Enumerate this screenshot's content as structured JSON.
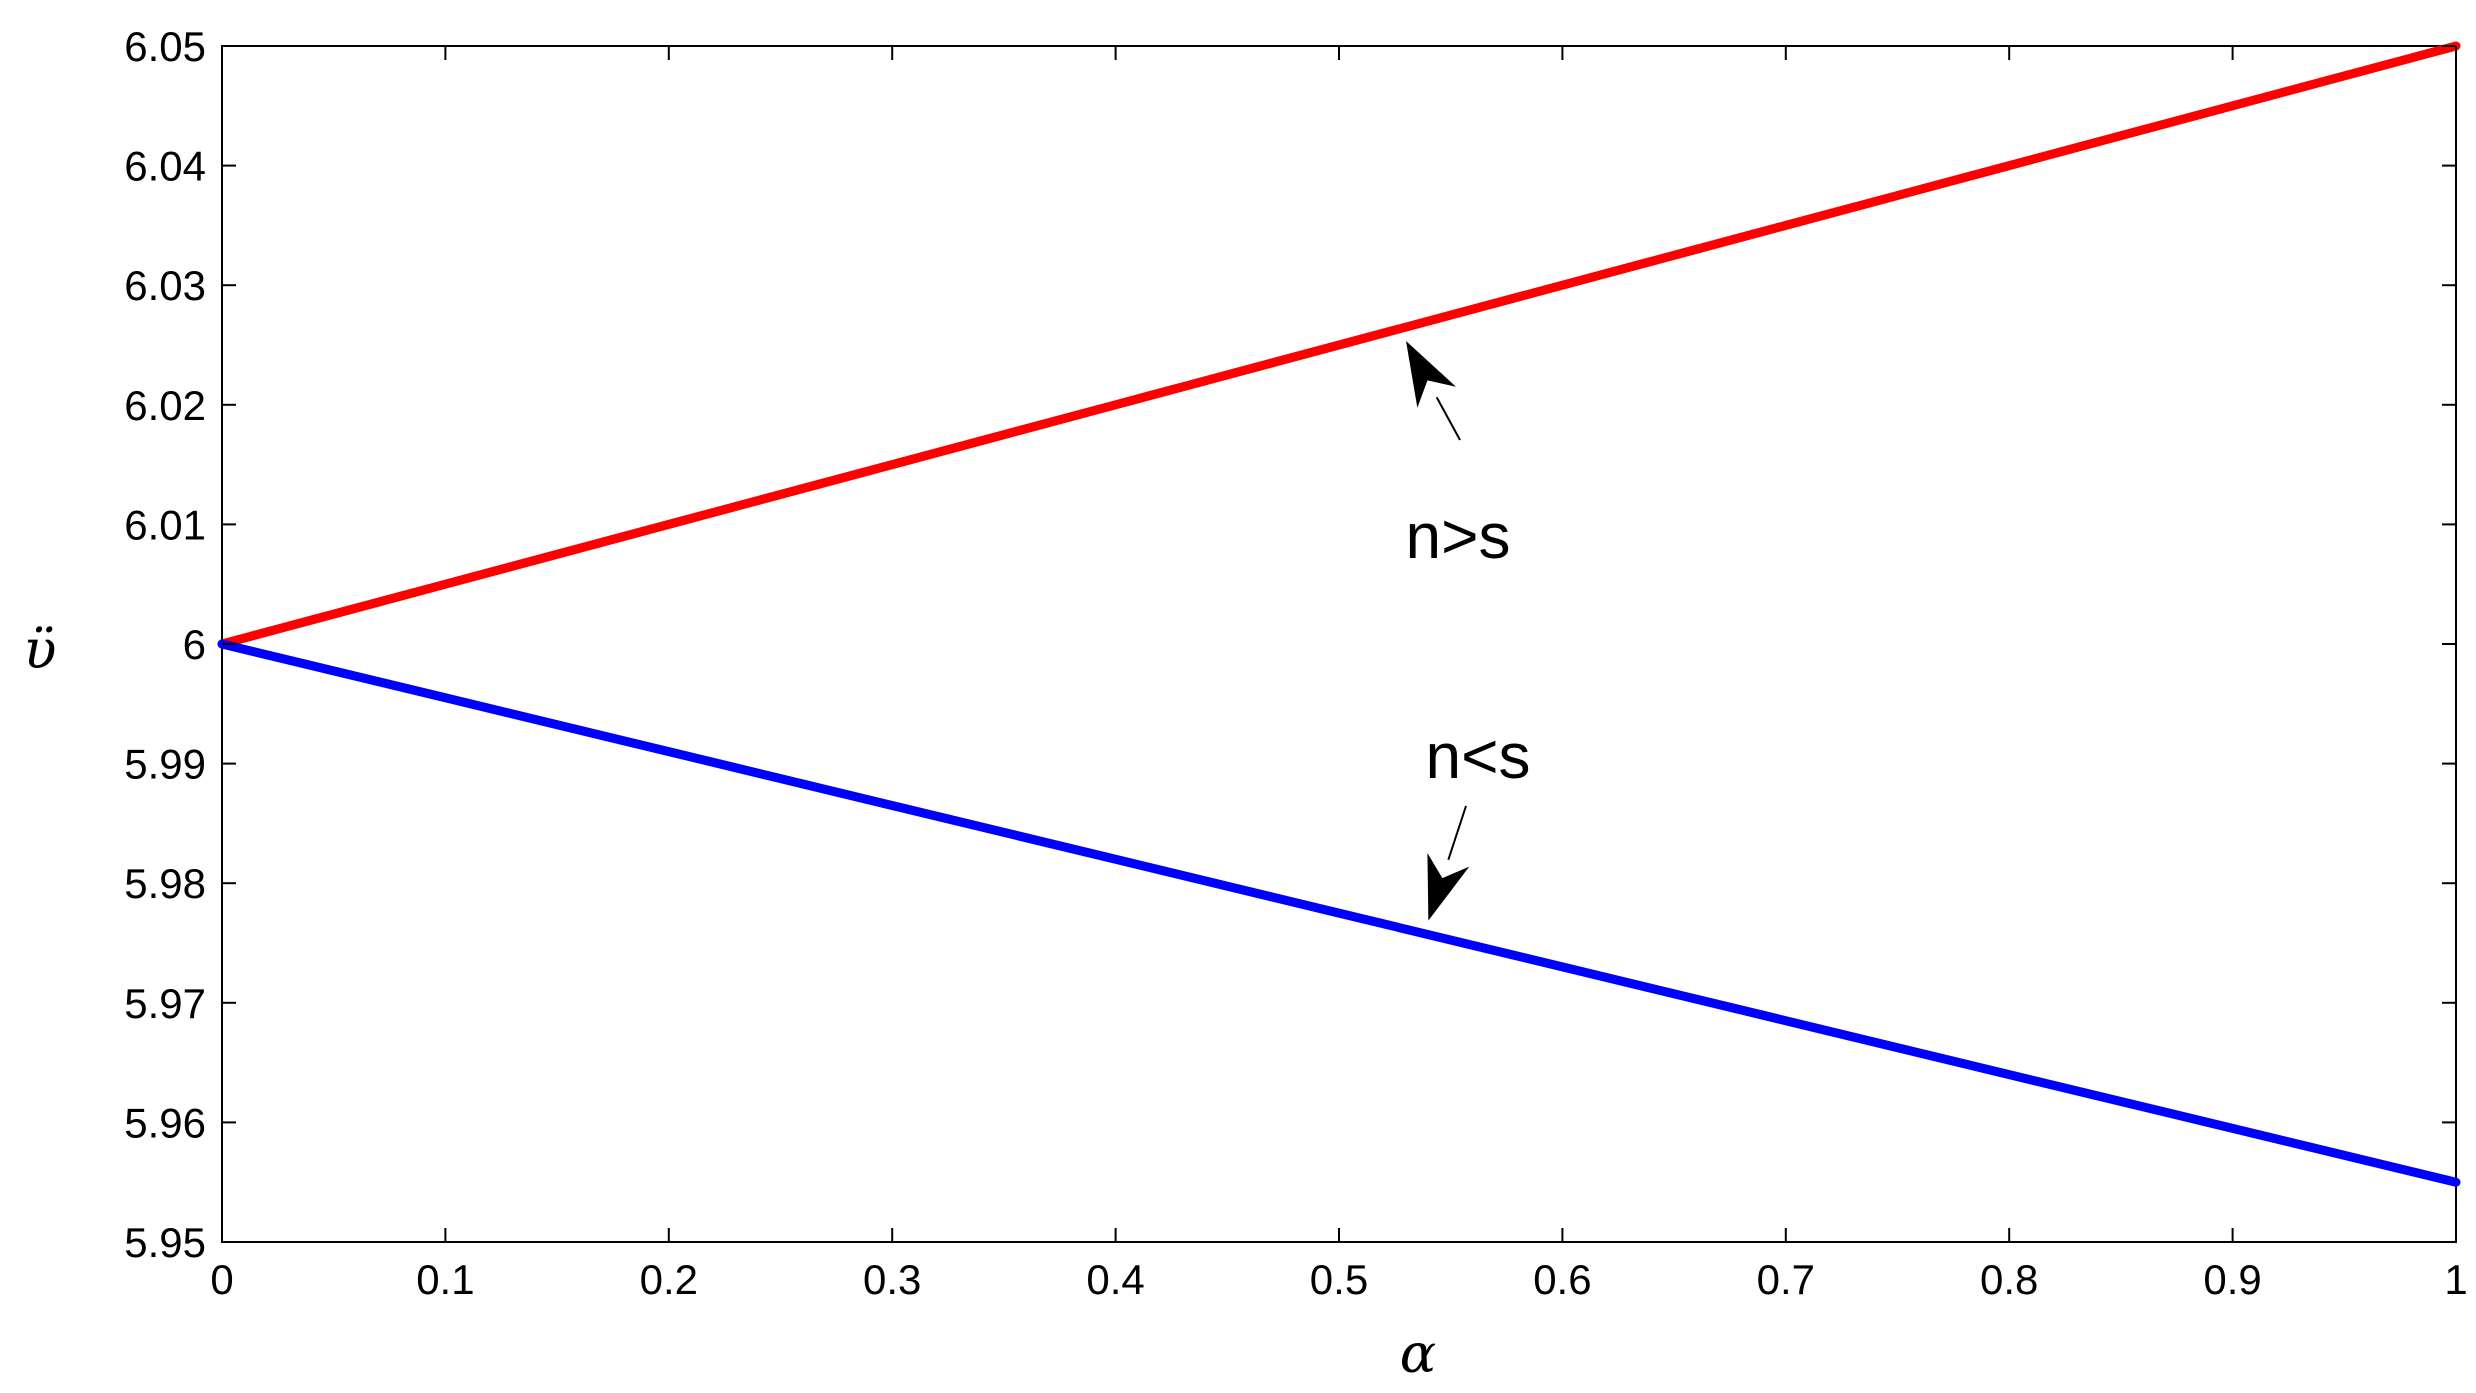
{
  "chart_data": {
    "type": "line",
    "title": "",
    "xlabel": "α",
    "ylabel": "ϋ",
    "xlim": [
      0,
      1
    ],
    "ylim": [
      5.95,
      6.05
    ],
    "x_ticks": [
      "0",
      "0.1",
      "0.2",
      "0.3",
      "0.4",
      "0.5",
      "0.6",
      "0.7",
      "0.8",
      "0.9",
      "1"
    ],
    "y_ticks": [
      "5.95",
      "5.96",
      "5.97",
      "5.98",
      "5.99",
      "6",
      "6.01",
      "6.02",
      "6.03",
      "6.04",
      "6.05"
    ],
    "grid": false,
    "series": [
      {
        "color": "#ff0000",
        "x": [
          0,
          0.1,
          0.2,
          0.3,
          0.4,
          0.5,
          0.6,
          0.7,
          0.8,
          0.9,
          1
        ],
        "values": [
          6.0,
          6.005,
          6.01,
          6.015,
          6.02,
          6.025,
          6.03,
          6.035,
          6.04,
          6.045,
          6.05
        ]
      },
      {
        "color": "#0000ff",
        "x": [
          0,
          0.1,
          0.2,
          0.3,
          0.4,
          0.5,
          0.6,
          0.7,
          0.8,
          0.9,
          1
        ],
        "values": [
          6.0,
          5.9955,
          5.991,
          5.9865,
          5.982,
          5.9775,
          5.973,
          5.9685,
          5.964,
          5.9595,
          5.955
        ]
      }
    ],
    "annotations": [
      {
        "text": "n>s",
        "series": 0,
        "points_to_x": 0.53
      },
      {
        "text": "n<s",
        "series": 1,
        "points_to_x": 0.54
      }
    ]
  }
}
